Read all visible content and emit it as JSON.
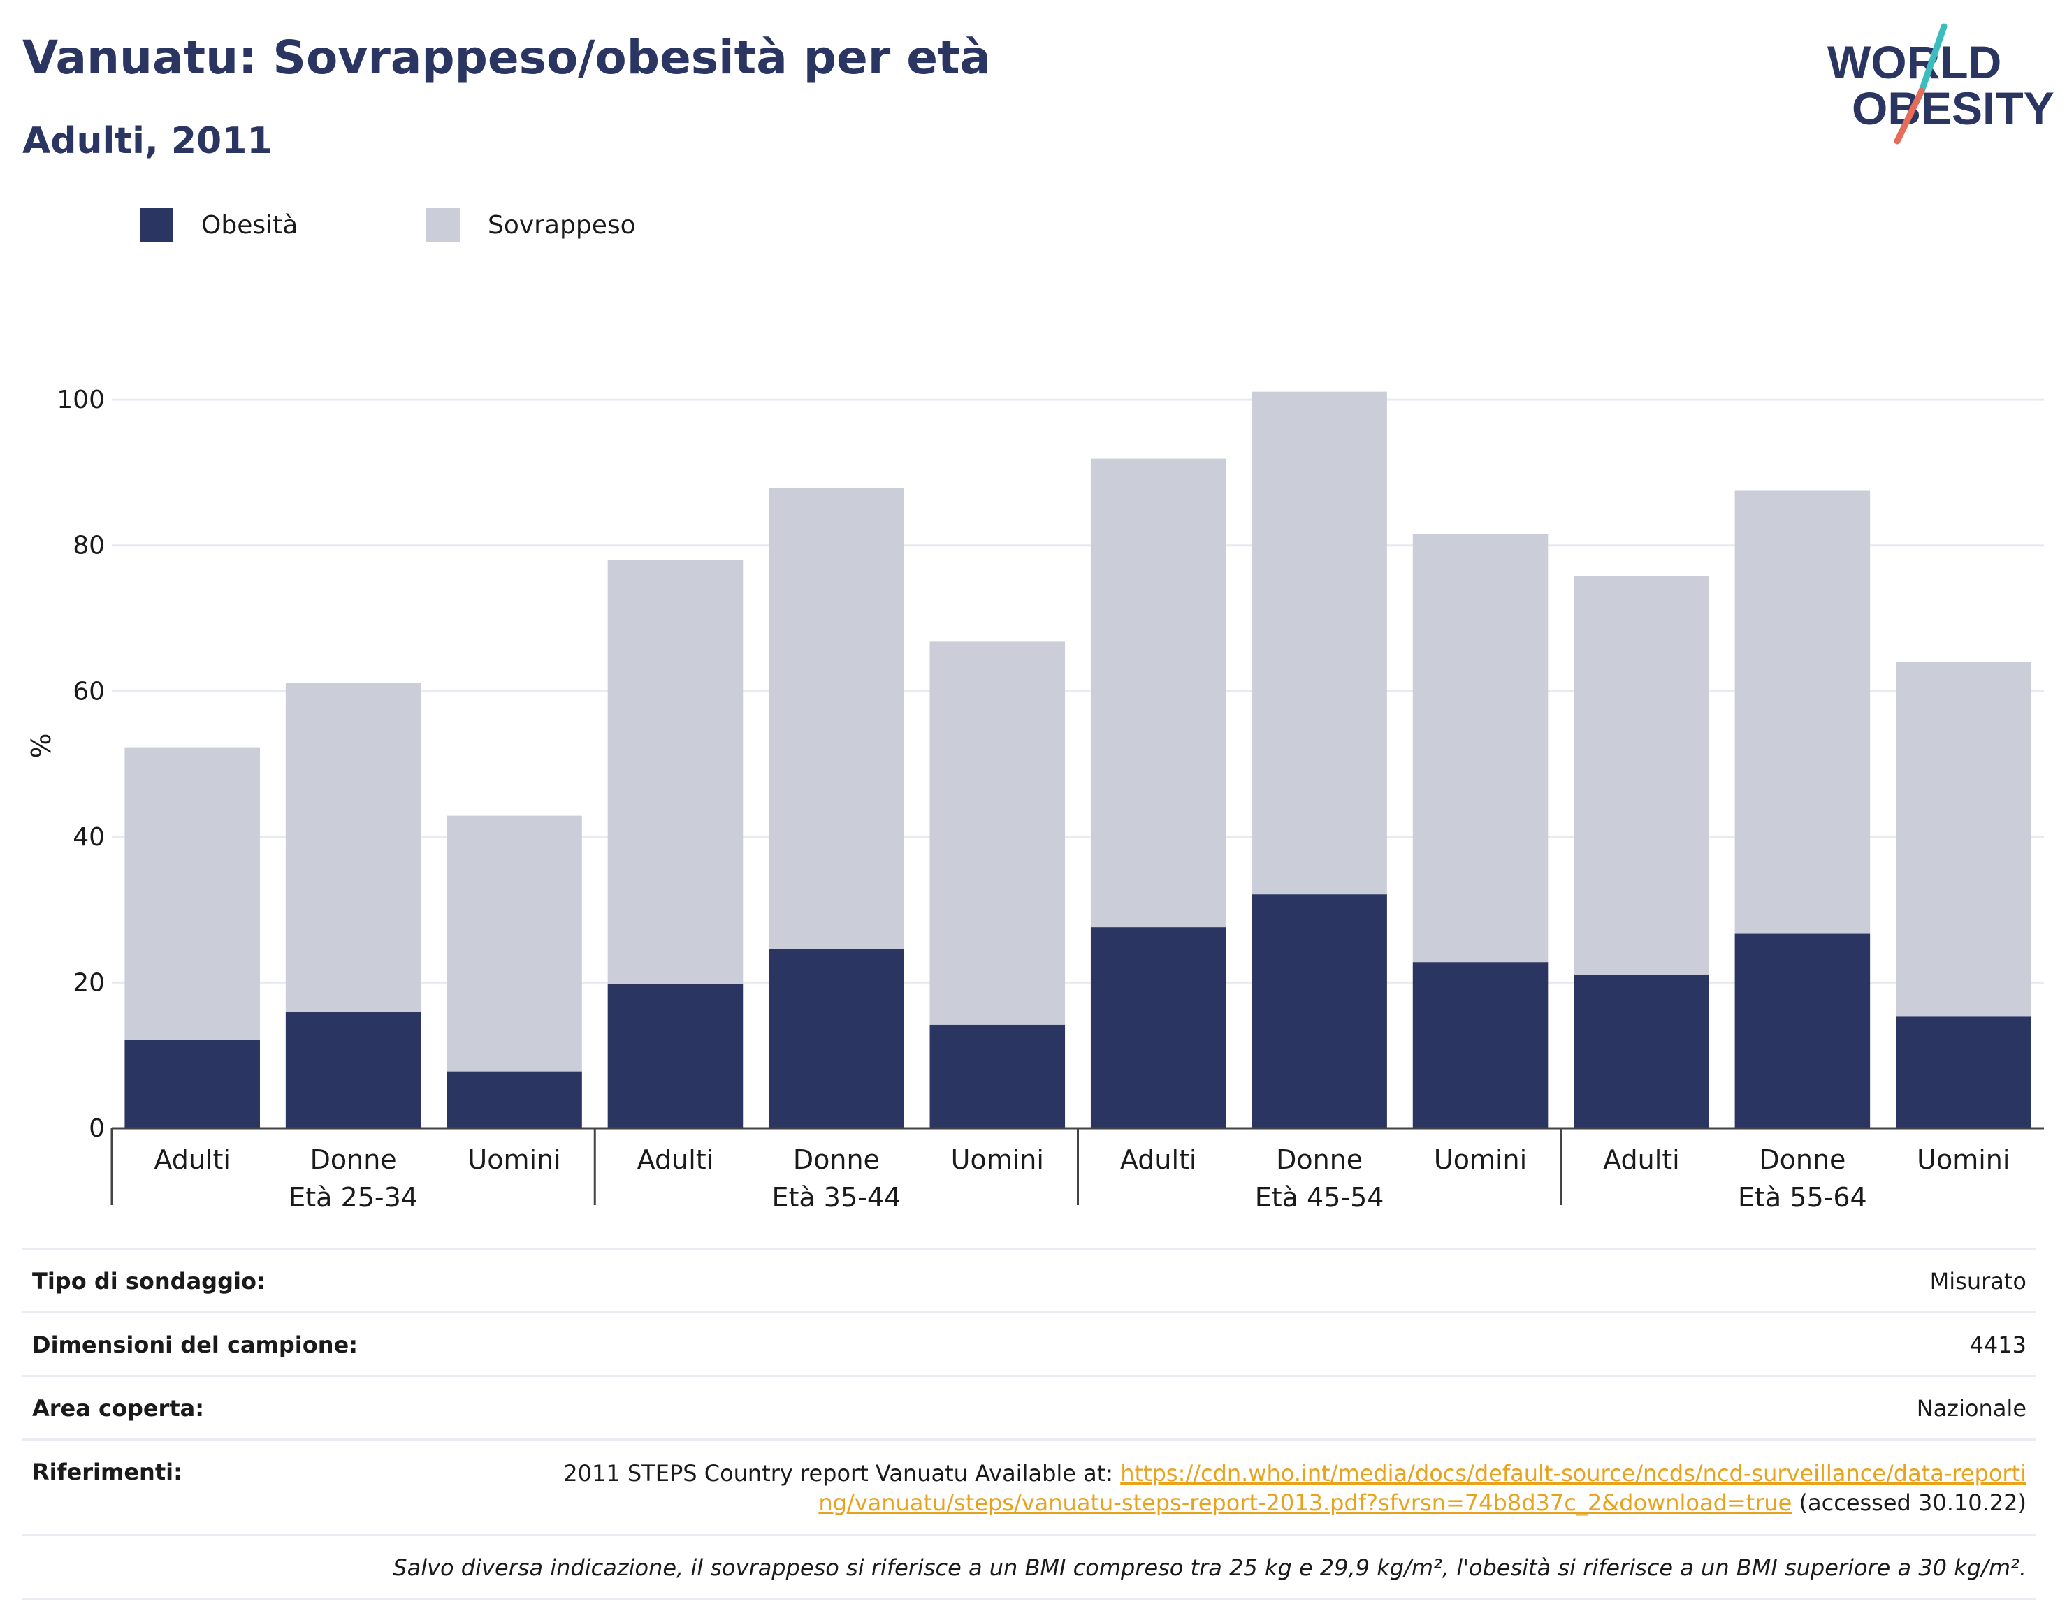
{
  "header": {
    "title": "Vanuatu: Sovrappeso/obesità per età",
    "subtitle": "Adulti, 2011"
  },
  "logo": {
    "line1": "WORLD",
    "line2": "OBESITY",
    "colors": {
      "text": "#2a3561",
      "slash_teal": "#3bbdbf",
      "slash_coral": "#e56c5b"
    }
  },
  "colors": {
    "obesity": "#2a3561",
    "overweight": "#cbcdd9",
    "grid": "#e8eaf2",
    "axis": "#444444",
    "link": "#e9a21c"
  },
  "chart_data": {
    "type": "bar",
    "stacked": true,
    "ylabel": "%",
    "ylim": [
      0,
      105
    ],
    "yticks": [
      0,
      20,
      40,
      60,
      80,
      100
    ],
    "grid": true,
    "legend_position": "top-left",
    "legend": [
      "Obesità",
      "Sovrappeso"
    ],
    "groups": [
      {
        "label": "Età 25-34",
        "categories": [
          "Adulti",
          "Donne",
          "Uomini"
        ]
      },
      {
        "label": "Età 35-44",
        "categories": [
          "Adulti",
          "Donne",
          "Uomini"
        ]
      },
      {
        "label": "Età 45-54",
        "categories": [
          "Adulti",
          "Donne",
          "Uomini"
        ]
      },
      {
        "label": "Età 55-64",
        "categories": [
          "Adulti",
          "Donne",
          "Uomini"
        ]
      }
    ],
    "series": [
      {
        "name": "Obesità",
        "values": [
          12.1,
          16.0,
          7.8,
          19.8,
          24.6,
          14.2,
          27.6,
          32.1,
          22.8,
          21.0,
          26.7,
          15.3
        ]
      },
      {
        "name": "Sovrappeso",
        "values": [
          40.2,
          45.1,
          35.1,
          58.2,
          63.3,
          52.6,
          64.3,
          69.0,
          58.8,
          54.8,
          60.8,
          48.7
        ]
      }
    ]
  },
  "info": {
    "rows": [
      {
        "key": "Tipo di sondaggio:",
        "value": "Misurato"
      },
      {
        "key": "Dimensioni del campione:",
        "value": "4413"
      },
      {
        "key": "Area coperta:",
        "value": "Nazionale"
      }
    ],
    "references": {
      "key": "Riferimenti:",
      "prefix": "2011 STEPS Country report Vanuatu Available at: ",
      "link": "https://cdn.who.int/media/docs/default-source/ncds/ncd-surveillance/data-reporting/vanuatu/steps/vanuatu-steps-report-2013.pdf?sfvrsn=74b8d37c_2&download=true",
      "suffix": " (accessed 30.10.22)"
    },
    "note": "Salvo diversa indicazione, il sovrappeso si riferisce a un BMI compreso tra 25 kg e 29,9 kg/m², l'obesità si riferisce a un BMI superiore a 30 kg/m²."
  }
}
